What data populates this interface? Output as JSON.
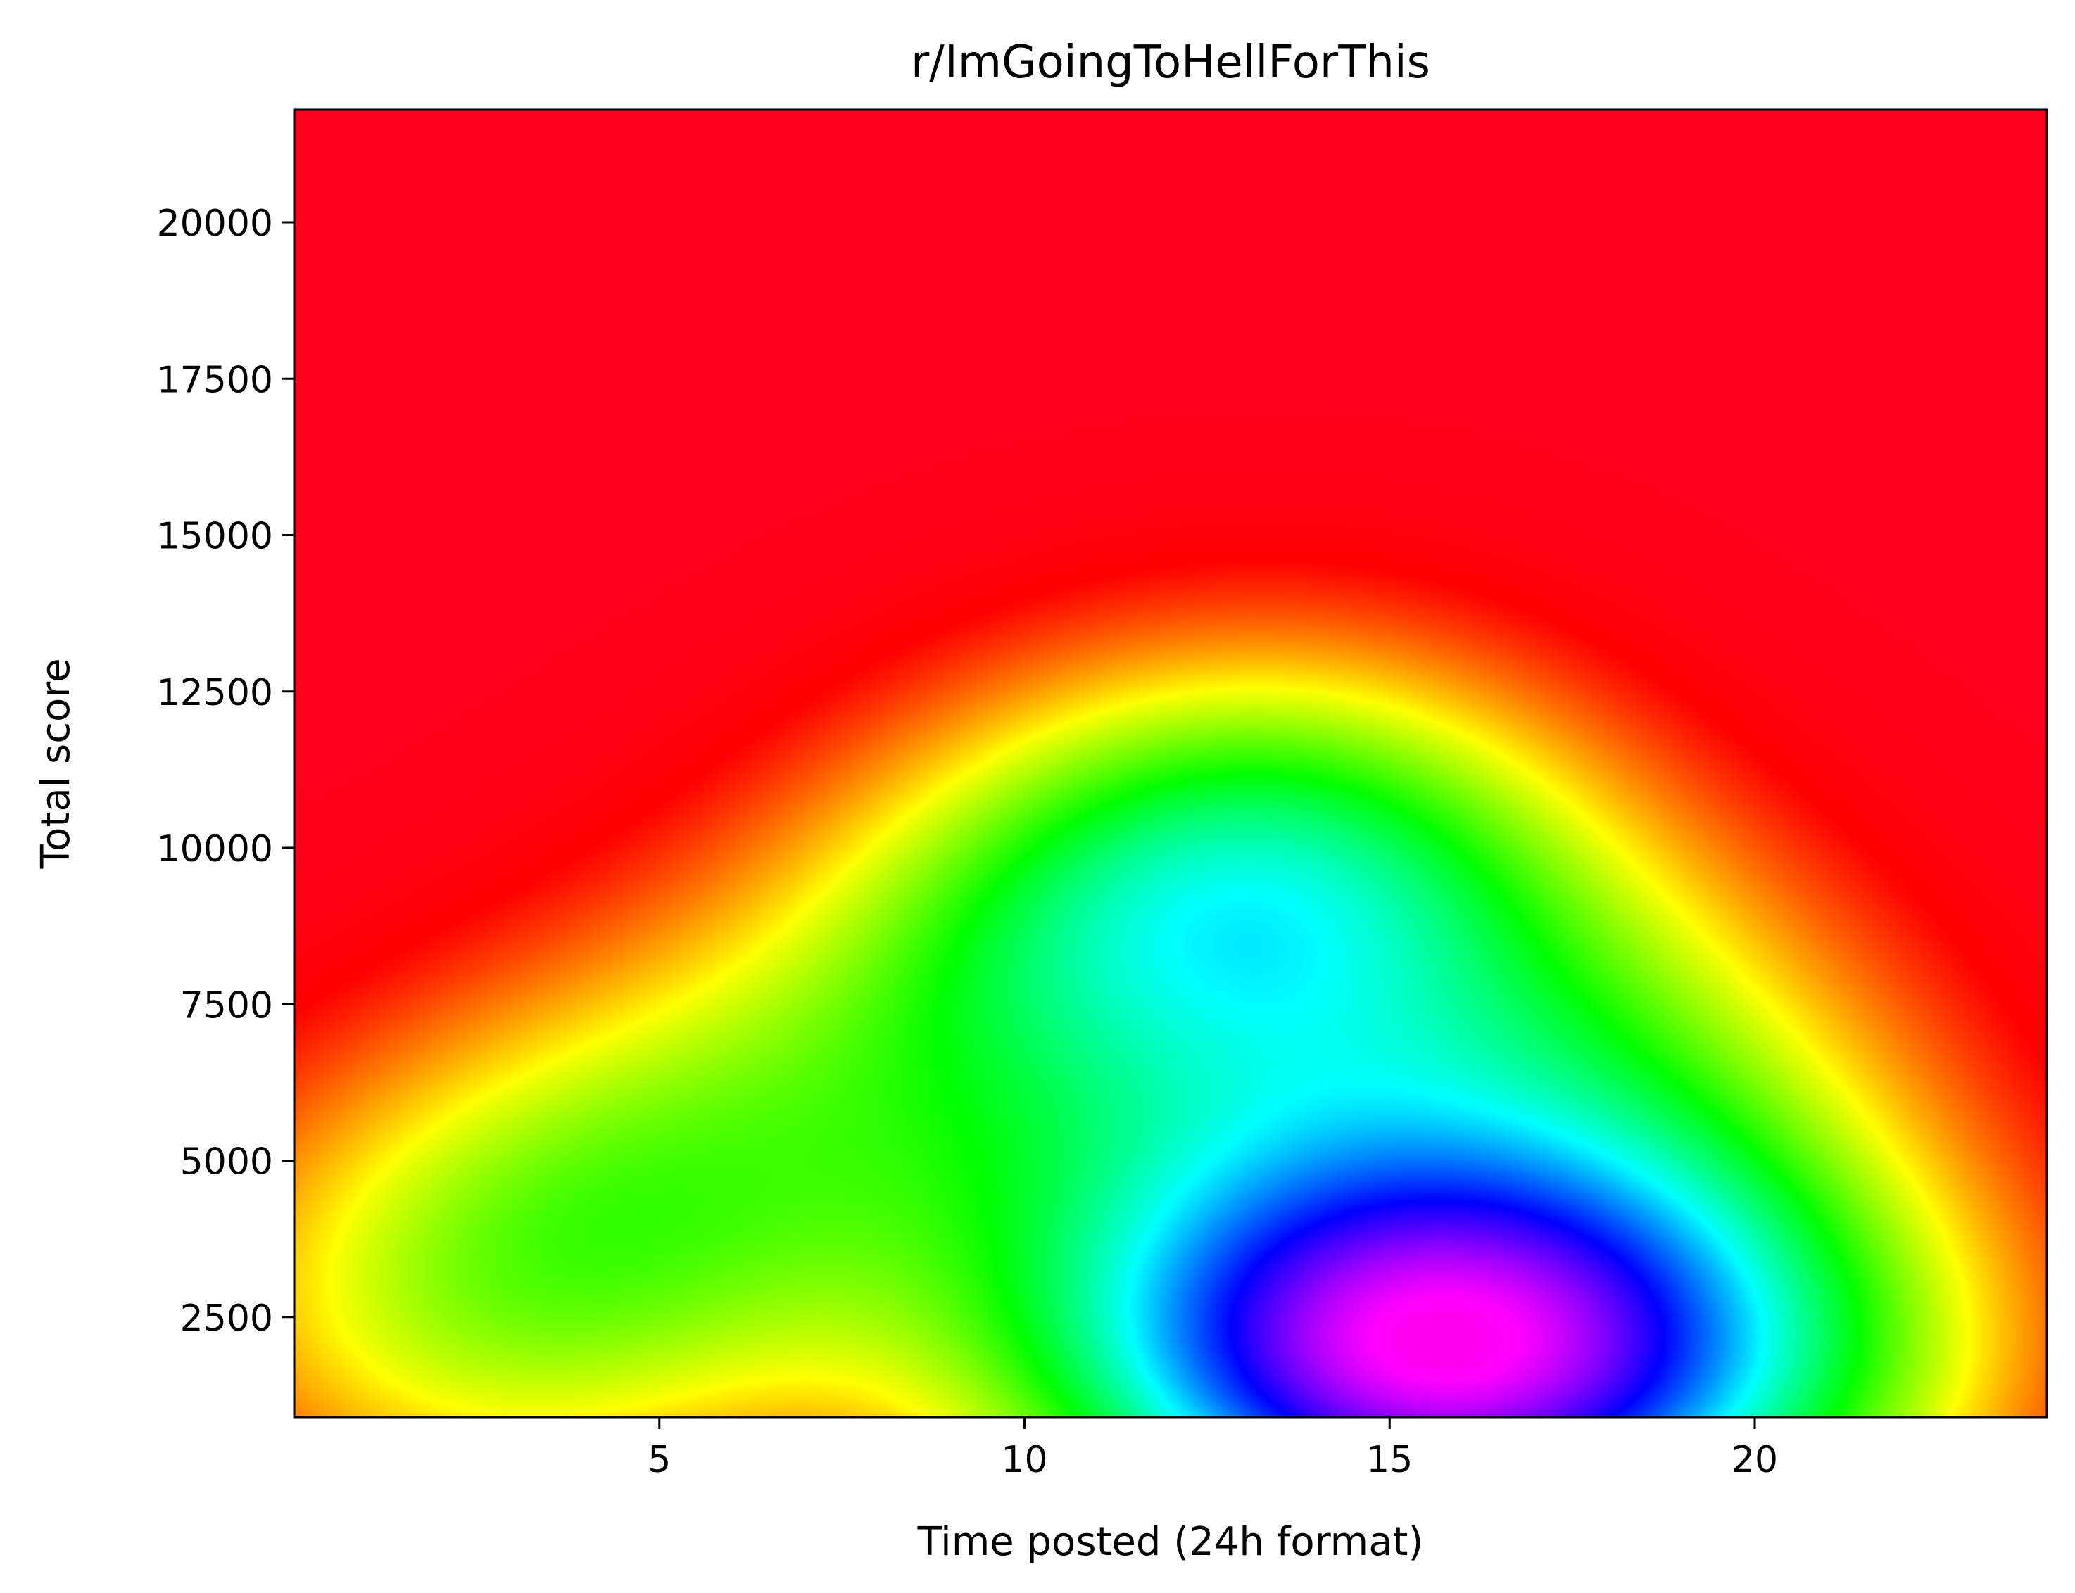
{
  "chart_data": {
    "type": "heatmap",
    "title": "r/ImGoingToHellForThis",
    "xlabel": "Time posted (24h format)",
    "ylabel": "Total score",
    "xlim": [
      0,
      24
    ],
    "ylim": [
      900,
      21800
    ],
    "x_ticks": [
      5,
      10,
      15,
      20
    ],
    "y_ticks": [
      2500,
      5000,
      7500,
      10000,
      12500,
      15000,
      17500,
      20000
    ],
    "colormap": "gist_rainbow",
    "colormap_stops": [
      "#ff0029",
      "#ff0000",
      "#ff8000",
      "#ffff00",
      "#80ff00",
      "#00ff00",
      "#00ff80",
      "#00ffff",
      "#0080ff",
      "#0000ff",
      "#8000ff",
      "#ff00ff",
      "#ff00bf"
    ],
    "density_peaks": [
      {
        "x": 15.5,
        "y": 1700,
        "weight": 1.0
      },
      {
        "x": 19.5,
        "y": 1900,
        "weight": 0.55
      },
      {
        "x": 12.5,
        "y": 2500,
        "weight": 0.45
      },
      {
        "x": 13.5,
        "y": 9500,
        "weight": 0.7
      },
      {
        "x": 2.5,
        "y": 2600,
        "weight": 0.4
      },
      {
        "x": 5.5,
        "y": 5000,
        "weight": 0.35
      },
      {
        "x": 18,
        "y": 6500,
        "weight": 0.35
      },
      {
        "x": 10,
        "y": 8000,
        "weight": 0.35
      }
    ],
    "grid": false,
    "legend": "none"
  }
}
